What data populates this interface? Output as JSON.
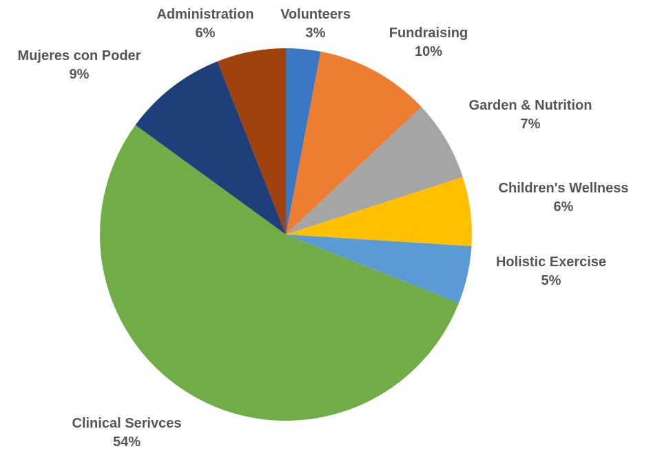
{
  "chart_data": {
    "type": "pie",
    "slices": [
      {
        "label": "Volunteers",
        "value": 3,
        "value_label": "3%",
        "color": "#3a78c4"
      },
      {
        "label": "Fundraising",
        "value": 10,
        "value_label": "10%",
        "color": "#ed7d31"
      },
      {
        "label": "Garden & Nutrition",
        "value": 7,
        "value_label": "7%",
        "color": "#a5a5a5"
      },
      {
        "label": "Children's Wellness",
        "value": 6,
        "value_label": "6%",
        "color": "#ffc000"
      },
      {
        "label": "Holistic Exercise",
        "value": 5,
        "value_label": "5%",
        "color": "#5b9bd5"
      },
      {
        "label": "Clinical Serivces",
        "value": 54,
        "value_label": "54%",
        "color": "#70ad47"
      },
      {
        "label": "Mujeres con Poder",
        "value": 9,
        "value_label": "9%",
        "color": "#1f3f7a"
      },
      {
        "label": "Administration",
        "value": 6,
        "value_label": "6%",
        "color": "#a0420e"
      }
    ],
    "start": "12 o'clock",
    "direction": "clockwise",
    "data_labels": "outside, category name and percentage",
    "legend": "none"
  }
}
